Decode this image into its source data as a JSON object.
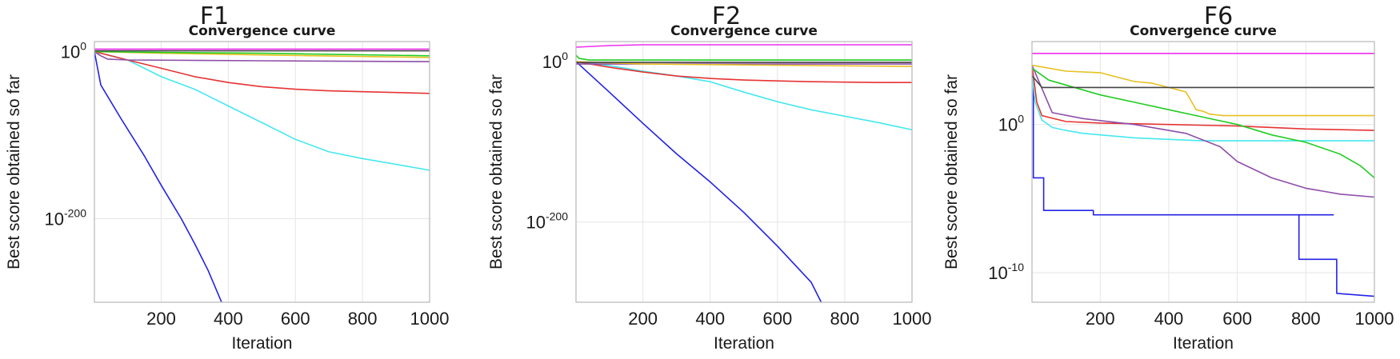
{
  "chart_data": [
    {
      "type": "line",
      "panel_label": "F1",
      "title": "Convergence curve",
      "xlabel": "Iteration",
      "ylabel": "Best score obtained so far",
      "yscale": "log",
      "xlim": [
        1,
        1000
      ],
      "ylim_exp": [
        -300,
        12
      ],
      "x_ticks": [
        200,
        400,
        600,
        800,
        1000
      ],
      "y_ticks": [
        {
          "base": "10",
          "exp": "0",
          "value_exp": 0
        },
        {
          "base": "10",
          "exp": "-200",
          "value_exp": -200
        }
      ],
      "series": [
        {
          "name": "blue",
          "color": "#2323e6",
          "x": [
            1,
            20,
            80,
            150,
            200,
            260,
            300,
            340,
            380
          ],
          "y_exp": [
            0,
            -40,
            -80,
            -125,
            -160,
            -200,
            -230,
            -262,
            -300
          ]
        },
        {
          "name": "cyan",
          "color": "#45e8ee",
          "x": [
            1,
            100,
            200,
            300,
            400,
            500,
            600,
            700,
            800,
            900,
            1000
          ],
          "y_exp": [
            0,
            -10,
            -30,
            -45,
            -65,
            -85,
            -105,
            -120,
            -128,
            -135,
            -142
          ]
        },
        {
          "name": "red",
          "color": "#e63333",
          "x": [
            1,
            100,
            200,
            300,
            400,
            500,
            600,
            700,
            800,
            900,
            1000
          ],
          "y_exp": [
            0,
            -10,
            -20,
            -30,
            -37,
            -42,
            -45,
            -47,
            -48,
            -49,
            -50
          ]
        },
        {
          "name": "purple",
          "color": "#8d4ea8",
          "x": [
            1,
            20,
            40,
            100,
            500,
            1000
          ],
          "y_exp": [
            0,
            -5,
            -9,
            -10,
            -11,
            -12
          ]
        },
        {
          "name": "yellow",
          "color": "#e8c020",
          "x": [
            1,
            200,
            500,
            1000
          ],
          "y_exp": [
            0,
            -2,
            -4,
            -7
          ]
        },
        {
          "name": "green",
          "color": "#22cc22",
          "x": [
            1,
            200,
            500,
            1000
          ],
          "y_exp": [
            0,
            -1,
            -2,
            -5
          ]
        },
        {
          "name": "black",
          "color": "#444444",
          "x": [
            1,
            1000
          ],
          "y_exp": [
            1,
            1
          ]
        },
        {
          "name": "magenta",
          "color": "#ee2eee",
          "x": [
            1,
            1000
          ],
          "y_exp": [
            3,
            3
          ]
        }
      ]
    },
    {
      "type": "line",
      "panel_label": "F2",
      "title": "Convergence curve",
      "xlabel": "Iteration",
      "ylabel": "Best score obtained so far",
      "yscale": "log",
      "xlim": [
        1,
        1000
      ],
      "ylim_exp": [
        -300,
        25
      ],
      "x_ticks": [
        200,
        400,
        600,
        800,
        1000
      ],
      "y_ticks": [
        {
          "base": "10",
          "exp": "0",
          "value_exp": 0
        },
        {
          "base": "10",
          "exp": "-200",
          "value_exp": -200
        }
      ],
      "series": [
        {
          "name": "blue",
          "color": "#2323e6",
          "x": [
            1,
            100,
            200,
            300,
            400,
            500,
            600,
            700,
            730
          ],
          "y_exp": [
            0,
            -38,
            -77,
            -115,
            -150,
            -188,
            -230,
            -275,
            -300
          ]
        },
        {
          "name": "cyan",
          "color": "#45e8ee",
          "x": [
            1,
            100,
            200,
            300,
            400,
            500,
            600,
            700,
            800,
            900,
            1000
          ],
          "y_exp": [
            0,
            -5,
            -12,
            -18,
            -25,
            -38,
            -50,
            -60,
            -68,
            -76,
            -85
          ]
        },
        {
          "name": "red",
          "color": "#e63333",
          "x": [
            1,
            100,
            200,
            300,
            400,
            500,
            600,
            700,
            800,
            900,
            1000
          ],
          "y_exp": [
            0,
            -7,
            -13,
            -18,
            -21,
            -23,
            -24,
            -25,
            -25.5,
            -26,
            -26
          ]
        },
        {
          "name": "purple",
          "color": "#8d4ea8",
          "x": [
            1,
            1000
          ],
          "y_exp": [
            -3,
            -3
          ]
        },
        {
          "name": "yellow",
          "color": "#e8c020",
          "x": [
            1,
            200,
            1000
          ],
          "y_exp": [
            0,
            -3,
            -6
          ]
        },
        {
          "name": "green",
          "color": "#22cc22",
          "x": [
            1,
            10,
            40,
            1000
          ],
          "y_exp": [
            8,
            4,
            2,
            2
          ]
        },
        {
          "name": "black",
          "color": "#444444",
          "x": [
            1,
            1000
          ],
          "y_exp": [
            -1,
            -1
          ]
        },
        {
          "name": "magenta",
          "color": "#ee2eee",
          "x": [
            1,
            100,
            200,
            1000
          ],
          "y_exp": [
            18,
            20,
            21,
            21
          ]
        }
      ]
    },
    {
      "type": "line",
      "panel_label": "F6",
      "title": "Convergence curve",
      "xlabel": "Iteration",
      "ylabel": "Best score obtained so far",
      "yscale": "log",
      "xlim": [
        1,
        1000
      ],
      "ylim_exp": [
        -12,
        5.6
      ],
      "x_ticks": [
        200,
        400,
        600,
        800,
        1000
      ],
      "y_ticks": [
        {
          "base": "10",
          "exp": "0",
          "value_exp": 0
        },
        {
          "base": "10",
          "exp": "-10",
          "value_exp": -10
        }
      ],
      "series": [
        {
          "name": "blue",
          "color": "#2323e6",
          "x": [
            1,
            5,
            5,
            35,
            35,
            180,
            180,
            880,
            880,
            780,
            780,
            890,
            890,
            1000
          ],
          "y_exp": [
            4,
            3,
            -3.6,
            -3.6,
            -5.8,
            -5.8,
            -6.1,
            -6.1,
            -6.1,
            -6.1,
            -9.1,
            -9.1,
            -11.4,
            -11.6
          ]
        },
        {
          "name": "cyan",
          "color": "#45e8ee",
          "x": [
            1,
            10,
            30,
            60,
            100,
            150,
            200,
            300,
            400,
            500,
            700,
            1000
          ],
          "y_exp": [
            3.5,
            1.5,
            0.3,
            -0.2,
            -0.4,
            -0.6,
            -0.7,
            -0.9,
            -1.0,
            -1.1,
            -1.1,
            -1.1
          ]
        },
        {
          "name": "red",
          "color": "#e63333",
          "x": [
            1,
            15,
            30,
            100,
            200,
            400,
            600,
            800,
            1000
          ],
          "y_exp": [
            4,
            1.5,
            0.6,
            0.2,
            0.1,
            0,
            -0.1,
            -0.3,
            -0.4
          ]
        },
        {
          "name": "purple",
          "color": "#8d4ea8",
          "x": [
            1,
            60,
            150,
            300,
            450,
            550,
            600,
            700,
            800,
            900,
            1000
          ],
          "y_exp": [
            4,
            0.8,
            0.4,
            0,
            -0.6,
            -1.5,
            -2.5,
            -3.6,
            -4.3,
            -4.7,
            -4.9
          ]
        },
        {
          "name": "yellow",
          "color": "#e8c020",
          "x": [
            1,
            100,
            200,
            250,
            300,
            350,
            400,
            450,
            480,
            500,
            520,
            560,
            600,
            700,
            800,
            1000
          ],
          "y_exp": [
            4,
            3.6,
            3.5,
            3.2,
            2.9,
            2.8,
            2.5,
            2.2,
            1.0,
            0.9,
            0.7,
            0.6,
            0.6,
            0.6,
            0.6,
            0.6
          ]
        },
        {
          "name": "green",
          "color": "#22cc22",
          "x": [
            1,
            50,
            200,
            300,
            400,
            500,
            600,
            700,
            800,
            900,
            960,
            1000
          ],
          "y_exp": [
            3.8,
            3.0,
            2.0,
            1.5,
            1.0,
            0.5,
            0,
            -0.7,
            -1.2,
            -2.0,
            -2.8,
            -3.6
          ]
        },
        {
          "name": "black",
          "color": "#444444",
          "x": [
            1,
            30,
            1000
          ],
          "y_exp": [
            3.3,
            2.5,
            2.5
          ]
        },
        {
          "name": "magenta",
          "color": "#ee2eee",
          "x": [
            1,
            1000
          ],
          "y_exp": [
            4.8,
            4.8
          ]
        }
      ]
    }
  ]
}
